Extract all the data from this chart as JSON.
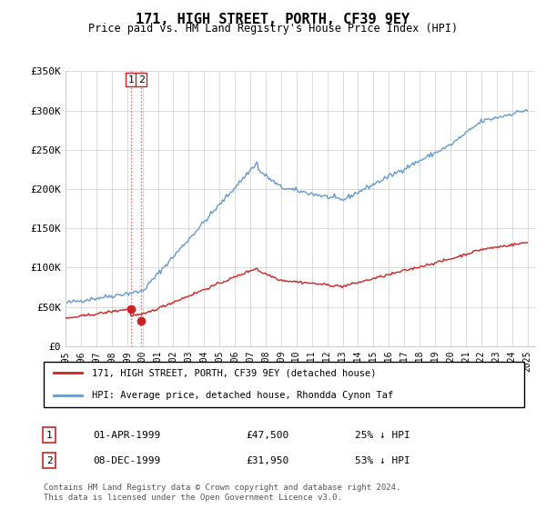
{
  "title": "171, HIGH STREET, PORTH, CF39 9EY",
  "subtitle": "Price paid vs. HM Land Registry's House Price Index (HPI)",
  "legend_line1": "171, HIGH STREET, PORTH, CF39 9EY (detached house)",
  "legend_line2": "HPI: Average price, detached house, Rhondda Cynon Taf",
  "footnote": "Contains HM Land Registry data © Crown copyright and database right 2024.\nThis data is licensed under the Open Government Licence v3.0.",
  "table_rows": [
    {
      "num": "1",
      "date": "01-APR-1999",
      "price": "£47,500",
      "hpi": "25% ↓ HPI"
    },
    {
      "num": "2",
      "date": "08-DEC-1999",
      "price": "£31,950",
      "hpi": "53% ↓ HPI"
    }
  ],
  "sale1_x": 1999.25,
  "sale1_y": 47500,
  "sale2_x": 1999.92,
  "sale2_y": 31950,
  "ylim": [
    0,
    350000
  ],
  "xlim_start": 1995.0,
  "xlim_end": 2025.5,
  "hpi_color": "#6699cc",
  "sale_color": "#cc2222",
  "dashed_color": "#cc3333",
  "grid_color": "#cccccc",
  "bg_color": "#ffffff",
  "yticks": [
    0,
    50000,
    100000,
    150000,
    200000,
    250000,
    300000,
    350000
  ],
  "ytick_labels": [
    "£0",
    "£50K",
    "£100K",
    "£150K",
    "£200K",
    "£250K",
    "£300K",
    "£350K"
  ],
  "xticks": [
    1995,
    1996,
    1997,
    1998,
    1999,
    2000,
    2001,
    2002,
    2003,
    2004,
    2005,
    2006,
    2007,
    2008,
    2009,
    2010,
    2011,
    2012,
    2013,
    2014,
    2015,
    2016,
    2017,
    2018,
    2019,
    2020,
    2021,
    2022,
    2023,
    2024,
    2025
  ]
}
